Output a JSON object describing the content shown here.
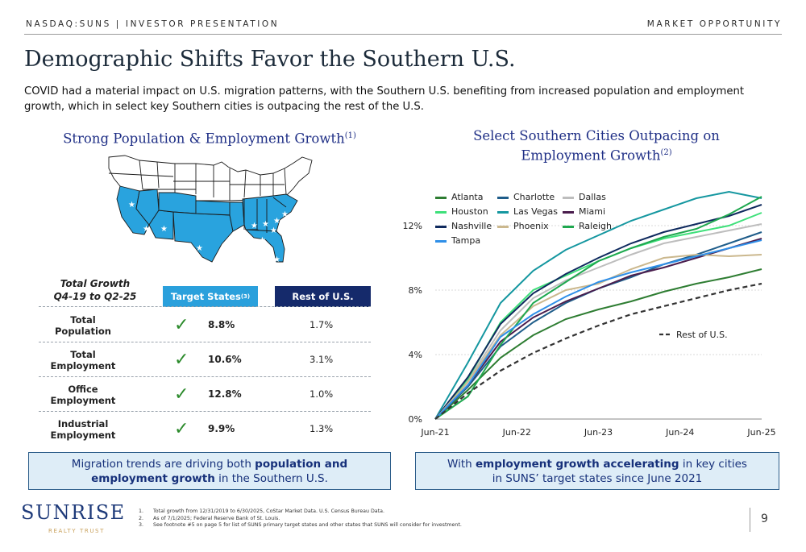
{
  "header": {
    "left": "NASDAQ:SUNS | INVESTOR PRESENTATION",
    "right": "MARKET OPPORTUNITY"
  },
  "title": "Demographic Shifts Favor the Southern U.S.",
  "lead": "COVID had a material impact on U.S. migration patterns, with the Southern U.S. benefiting from increased population and employment growth, which in select key Southern cities is outpacing the rest of the U.S.",
  "left_section": {
    "heading": "Strong Population & Employment Growth",
    "note": "(1)"
  },
  "right_section": {
    "heading_line1": "Select Southern Cities Outpacing on",
    "heading_line2": "Employment Growth",
    "note": "(2)"
  },
  "table": {
    "caption_line1": "Total Growth",
    "caption_line2": "Q4-19 to Q2-25",
    "col_target": "Target States",
    "col_target_note": "(3)",
    "col_rest": "Rest of U.S.",
    "rows": [
      {
        "l1": "Total",
        "l2": "Population",
        "target": "8.8%",
        "rest": "1.7%"
      },
      {
        "l1": "Total",
        "l2": "Employment",
        "target": "10.6%",
        "rest": "3.1%"
      },
      {
        "l1": "Office",
        "l2": "Employment",
        "target": "12.8%",
        "rest": "1.0%"
      },
      {
        "l1": "Industrial",
        "l2": "Employment",
        "target": "9.9%",
        "rest": "1.3%"
      }
    ]
  },
  "box_left": {
    "t1": "Migration trends are driving both ",
    "b1": "population and",
    "b2": "employment growth",
    "t2": " in the Southern U.S."
  },
  "box_right": {
    "t1": "With ",
    "b1": "employment growth accelerating",
    "t2": " in key cities",
    "t3": "in SUNS’ target states since June 2021"
  },
  "logo": {
    "name": "SUNRISE",
    "sub": "REALTY TRUST"
  },
  "footnotes": [
    {
      "n": "1.",
      "text": "Total growth from 12/31/2019 to 6/30/2025, CoStar Market Data. U.S. Census Bureau Data."
    },
    {
      "n": "2.",
      "text": "As of 7/1/2025; Federal Reserve Bank of St. Louis."
    },
    {
      "n": "3.",
      "text": "See footnote #5 on page 5 for list of SUNS primary target states and other states that SUNS will consider for investment."
    }
  ],
  "page_number": "9",
  "colors": {
    "target": "#2aa0dc",
    "rest": "#152a6b",
    "title": "#1f2f86",
    "state_fill": "#29a3de"
  },
  "chart_data": {
    "type": "line",
    "x_ticks": [
      "Jun-21",
      "Jun-22",
      "Jun-23",
      "Jun-24",
      "Jun-25"
    ],
    "y_ticks": [
      "0%",
      "4%",
      "8%",
      "12%"
    ],
    "ylim": [
      0,
      15
    ],
    "grid": true,
    "legend_position": "top-left",
    "series": [
      {
        "name": "Atlanta",
        "color": "#2e7d32",
        "dash": false,
        "values": [
          0,
          1.8,
          3.8,
          5.2,
          6.2,
          6.8,
          7.3,
          7.9,
          8.4,
          8.8,
          9.3
        ]
      },
      {
        "name": "Charlotte",
        "color": "#1f5d8a",
        "dash": false,
        "values": [
          0,
          2.0,
          4.5,
          6.0,
          7.2,
          8.1,
          8.8,
          9.6,
          10.2,
          10.9,
          11.6
        ]
      },
      {
        "name": "Dallas",
        "color": "#bdbdbd",
        "dash": false,
        "values": [
          0,
          2.4,
          5.5,
          7.5,
          8.6,
          9.4,
          10.2,
          10.9,
          11.3,
          11.7,
          12.1
        ]
      },
      {
        "name": "Houston",
        "color": "#3ee07a",
        "dash": false,
        "values": [
          0,
          2.5,
          6.0,
          8.0,
          8.9,
          9.8,
          10.6,
          11.2,
          11.6,
          12.0,
          12.8
        ]
      },
      {
        "name": "Las Vegas",
        "color": "#1597a0",
        "dash": false,
        "values": [
          0,
          3.5,
          7.2,
          9.2,
          10.5,
          11.4,
          12.3,
          13.0,
          13.7,
          14.1,
          13.7
        ]
      },
      {
        "name": "Miami",
        "color": "#4a1d4d",
        "dash": false,
        "values": [
          0,
          2.1,
          4.8,
          6.3,
          7.3,
          8.1,
          8.9,
          9.4,
          10.0,
          10.6,
          11.2
        ]
      },
      {
        "name": "Nashville",
        "color": "#0f2a5e",
        "dash": false,
        "values": [
          0,
          2.6,
          5.9,
          7.8,
          9.0,
          10.0,
          10.9,
          11.6,
          12.1,
          12.6,
          13.3
        ]
      },
      {
        "name": "Phoenix",
        "color": "#cbb88e",
        "dash": false,
        "values": [
          0,
          2.3,
          5.2,
          7.0,
          8.0,
          8.4,
          9.3,
          10.0,
          10.2,
          10.1,
          10.2
        ]
      },
      {
        "name": "Raleigh",
        "color": "#1fa84f",
        "dash": false,
        "values": [
          0,
          1.4,
          4.6,
          7.2,
          8.5,
          9.8,
          10.6,
          11.3,
          11.8,
          12.7,
          13.8
        ]
      },
      {
        "name": "Tampa",
        "color": "#2f8fe8",
        "dash": false,
        "values": [
          0,
          2.1,
          5.1,
          6.5,
          7.6,
          8.5,
          9.1,
          9.6,
          10.1,
          10.6,
          11.1
        ]
      },
      {
        "name": "Rest of U.S.",
        "color": "#333333",
        "dash": true,
        "values": [
          0,
          1.6,
          3.0,
          4.1,
          5.0,
          5.8,
          6.5,
          7.0,
          7.5,
          8.0,
          8.4
        ]
      }
    ]
  }
}
